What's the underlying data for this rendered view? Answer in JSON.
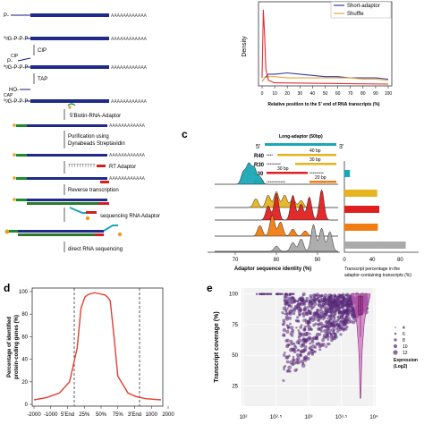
{
  "panel_a": {
    "molecule_labels": [
      "P-",
      "⁰ᵍG-P-P-P-",
      "⁰ᵍG-P-P-P-",
      "HO-",
      "⁰ᵍG-P-P-P-"
    ],
    "cip_tag": "CIP",
    "cap_tag": "CAP",
    "steps": [
      "CIP",
      "TAP",
      "5'Biotin-RNA-Adaptor",
      "Purification using",
      "Dynabeads Streptavidin",
      "RT Adaptor",
      "Reverse transcription",
      "sequencing RNA Adaptor",
      "direct RNA sequencing"
    ],
    "polya": "AAAAAAAAAAAA",
    "polyt": "TTTTTTTTTT"
  },
  "panel_b": {
    "legend": [
      "Short-adaptor",
      "Shuffle"
    ],
    "colors": [
      "#3a3aa0",
      "#e8a838"
    ],
    "ylabel": "Density",
    "xlabel": "Relative position to the 5' end of RNA transcripts (%)",
    "xticks": [
      "0",
      "10",
      "20",
      "30",
      "40",
      "50",
      "60",
      "70",
      "80",
      "90",
      "100"
    ]
  },
  "panel_c": {
    "label": "c",
    "adaptor_title": "Long-adaptor (50bp)",
    "five": "5'",
    "three": "3'",
    "rows": [
      {
        "name": "R40",
        "span": "40 bp"
      },
      {
        "name": "R30",
        "span": "30 bp"
      },
      {
        "name": "L30",
        "span": "30 bp"
      },
      {
        "name": "R20",
        "span": "20 bp"
      }
    ],
    "ridge_colors": [
      "#1aa7b7",
      "#e6b41e",
      "#e02020",
      "#f07d12",
      "#aaaaaa"
    ],
    "xlabel": "Adaptor sequence identity (%)",
    "xticks": [
      "70",
      "80",
      "90"
    ],
    "bar_xlabel": "Transcript percentage in the adaptor-containing transcripts (%)",
    "bar_xticks": [
      "0",
      "40",
      "80"
    ],
    "bars": [
      8,
      47,
      50,
      48,
      88
    ],
    "bar_colors": [
      "#1aa7b7",
      "#e6b41e",
      "#e02020",
      "#f07d12",
      "#aaaaaa"
    ]
  },
  "panel_d": {
    "label": "d",
    "ylabel_lines": [
      "Percentage of identified",
      "protein-coding genes (%)"
    ],
    "yticks": [
      "0",
      "20",
      "40",
      "60",
      "80",
      "100"
    ],
    "xticks": [
      "-2000",
      "-1000",
      "5'End",
      "25%",
      "50%",
      "75%",
      "3'End",
      "1000",
      "2000"
    ],
    "line_color": "#e04030"
  },
  "panel_e": {
    "label": "e",
    "ylabel": "Transcript coverage (%)",
    "yticks": [
      "25",
      "50",
      "75",
      "100"
    ],
    "xticks": [
      "10²",
      "10²·⁵",
      "10³",
      "10³·⁵",
      "10⁴"
    ],
    "legend_values": [
      "4",
      "6",
      "8",
      "10",
      "12"
    ],
    "legend_title_lines": [
      "Expression",
      "(Log2)"
    ],
    "point_color": "#5a2a7a",
    "violin_color": "#cc66bb"
  },
  "chart_data": [
    {
      "type": "line",
      "panel": "b",
      "xlabel": "Relative position to the 5' end of RNA transcripts (%)",
      "ylabel": "Density",
      "xlim": [
        0,
        100
      ],
      "series": [
        {
          "name": "Short-adaptor",
          "x": [
            0,
            2,
            5,
            10,
            20,
            30,
            40,
            50,
            60,
            70,
            80,
            90,
            100
          ],
          "y": [
            0.02,
            0.05,
            0.08,
            0.08,
            0.09,
            0.08,
            0.07,
            0.06,
            0.06,
            0.05,
            0.05,
            0.05,
            0.04
          ]
        },
        {
          "name": "Shuffle",
          "x": [
            0,
            2,
            5,
            10,
            20,
            30,
            40,
            50,
            60,
            70,
            80,
            90,
            100
          ],
          "y": [
            0.02,
            0.05,
            0.06,
            0.06,
            0.05,
            0.05,
            0.05,
            0.05,
            0.05,
            0.05,
            0.04,
            0.04,
            0.03
          ]
        },
        {
          "x": [
            0,
            1,
            2,
            3,
            5,
            10,
            100
          ],
          "y": [
            0.05,
            0.6,
            0.4,
            0.12,
            0.03,
            0.01,
            0.0
          ]
        }
      ]
    },
    {
      "type": "bar",
      "panel": "c",
      "categories": [
        "R40",
        "R30",
        "L30",
        "R20",
        ""
      ],
      "values": [
        8,
        47,
        50,
        48,
        88
      ],
      "xlabel": "Transcript percentage in the adaptor-containing transcripts (%)"
    },
    {
      "type": "line",
      "panel": "d",
      "ylabel": "Percentage of identified protein-coding genes (%)",
      "ylim": [
        0,
        100
      ],
      "categories": [
        "-2000",
        "-1000",
        "5'End",
        "25%",
        "50%",
        "75%",
        "3'End",
        "1000",
        "2000"
      ],
      "x": [
        -2000,
        -1500,
        -1000,
        -600,
        -300,
        -150,
        0,
        100,
        200,
        400,
        600,
        800,
        900,
        1000,
        1150,
        1300,
        1700,
        2000,
        2400,
        3000
      ],
      "y": [
        4,
        6,
        10,
        20,
        50,
        85,
        95,
        97,
        98,
        99,
        98,
        97,
        95,
        92,
        60,
        25,
        10,
        7,
        5,
        4
      ]
    },
    {
      "type": "scatter",
      "panel": "e",
      "ylabel": "Transcript coverage (%)",
      "ylim": [
        0,
        100
      ],
      "xlim_log10": [
        2,
        4
      ],
      "legend": [
        "4",
        "6",
        "8",
        "10",
        "12"
      ],
      "legend_title": "Expression (Log2)"
    }
  ]
}
